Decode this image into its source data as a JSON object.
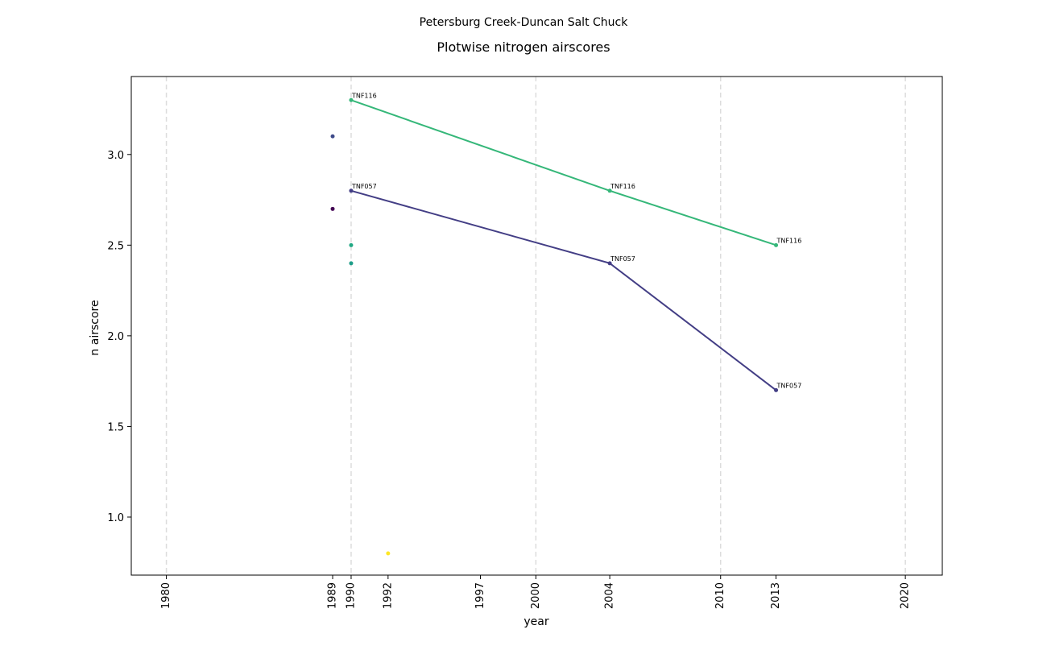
{
  "chart_data": {
    "type": "scatter",
    "suptitle": "Petersburg Creek-Duncan Salt Chuck",
    "title": "Plotwise nitrogen airscores",
    "xlabel": "year",
    "ylabel": "n airscore",
    "xlim": [
      1978.1,
      2022.0
    ],
    "ylim": [
      0.68,
      3.43
    ],
    "x_ticks": [
      1980,
      1989,
      1990,
      1992,
      1997,
      2000,
      2004,
      2010,
      2013,
      2020
    ],
    "y_ticks": [
      1.0,
      1.5,
      2.0,
      2.5,
      3.0
    ],
    "y_tick_labels": [
      "1.0",
      "1.5",
      "2.0",
      "2.5",
      "3.0"
    ],
    "vertical_gridlines_at": [
      1980,
      1990,
      2000,
      2010,
      2020
    ],
    "grid": "dashed vertical lines only",
    "legend": "none",
    "series": [
      {
        "name": "TNF116",
        "color": "#35b779",
        "x": [
          1990,
          2004,
          2013
        ],
        "y": [
          3.3,
          2.8,
          2.5
        ],
        "point_labels": [
          "TNF116",
          "TNF116",
          "TNF116"
        ]
      },
      {
        "name": "TNF057",
        "color": "#433e85",
        "x": [
          1990,
          2004,
          2013
        ],
        "y": [
          2.8,
          2.4,
          1.7
        ],
        "point_labels": [
          "TNF057",
          "TNF057",
          "TNF057"
        ]
      }
    ],
    "points": [
      {
        "x": 1989,
        "y": 3.1,
        "color": "#3e4a89"
      },
      {
        "x": 1989,
        "y": 2.7,
        "color": "#440154"
      },
      {
        "x": 1990,
        "y": 2.5,
        "color": "#22a884"
      },
      {
        "x": 1990,
        "y": 2.4,
        "color": "#1f9e89"
      },
      {
        "x": 1992,
        "y": 0.8,
        "color": "#fde725"
      }
    ]
  }
}
